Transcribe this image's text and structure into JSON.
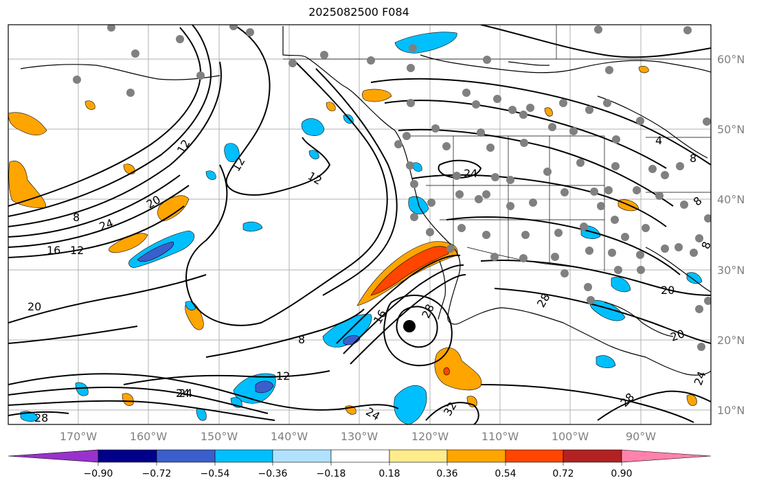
{
  "title": "2025082500 F084",
  "lat_labels": [
    "60°N",
    "50°N",
    "40°N",
    "30°N",
    "20°N",
    "10°N"
  ],
  "lon_labels": [
    "170°W",
    "160°W",
    "150°W",
    "140°W",
    "130°W",
    "120°W",
    "110°W",
    "100°W",
    "90°W"
  ],
  "colorbar": {
    "ticks": [
      "−0.90",
      "−0.72",
      "−0.54",
      "−0.36",
      "−0.18",
      "0.18",
      "0.36",
      "0.54",
      "0.72",
      "0.90"
    ],
    "colors": [
      "#9932cc",
      "#00008b",
      "#3a5fcd",
      "#00bfff",
      "#b0e2ff",
      "#ffffff",
      "#ffec8b",
      "#ffa500",
      "#ff4500",
      "#b22222",
      "#ff82ab"
    ]
  },
  "contour_labels": [
    "12",
    "12",
    "12",
    "20",
    "24",
    "8",
    "16",
    "12",
    "20",
    "24",
    "8",
    "16",
    "28",
    "12",
    "24",
    "28",
    "32",
    "24",
    "28",
    "20",
    "20",
    "24",
    "8",
    "8",
    "4",
    "8",
    "28",
    "24"
  ],
  "map_colors": {
    "orange": "#ffa500",
    "red": "#ff4500",
    "blue": "#00bfff",
    "royal": "#3a5fcd",
    "grid": "#b0b0b0",
    "station": "#808080"
  }
}
